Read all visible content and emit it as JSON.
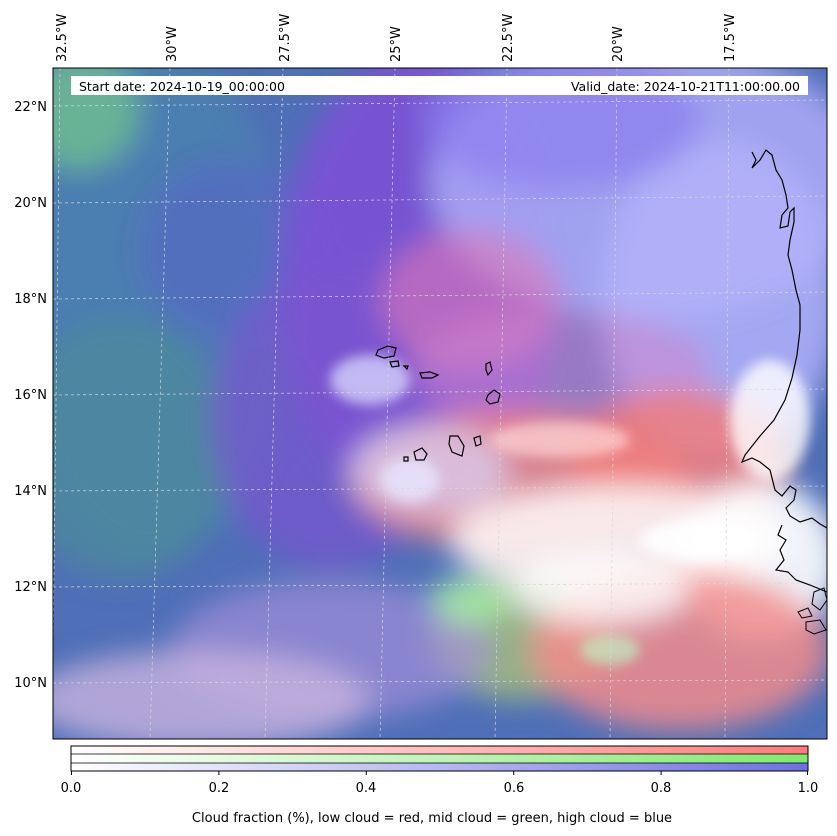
{
  "header": {
    "start_date": "Start date: 2024-10-19_00:00:00",
    "valid_date": "Valid_date: 2024-10-21T11:00:00.00"
  },
  "longitude_labels": [
    "32.5°W",
    "30°W",
    "27.5°W",
    "25°W",
    "22.5°W",
    "20°W",
    "17.5°W"
  ],
  "latitude_labels": [
    "22°N",
    "20°N",
    "18°N",
    "16°N",
    "14°N",
    "12°N",
    "10°N"
  ],
  "colorbar": {
    "ticks": [
      "0.0",
      "0.2",
      "0.4",
      "0.6",
      "0.8",
      "1.0"
    ],
    "caption": "Cloud fraction (%), low cloud = red, mid cloud = green, high cloud = blue",
    "colors": {
      "low": "#ff7a7a",
      "mid": "#88ee88",
      "high": "#7777ee"
    }
  },
  "map_colors": {
    "high_cloud": "#6f8fe0",
    "ocean_base": "#4c72b0",
    "mid_cloud": "#7ab89a",
    "low_cloud": "#f08a8a",
    "purple_mix": "#8a5ad8",
    "clear_white": "#ffffff"
  }
}
